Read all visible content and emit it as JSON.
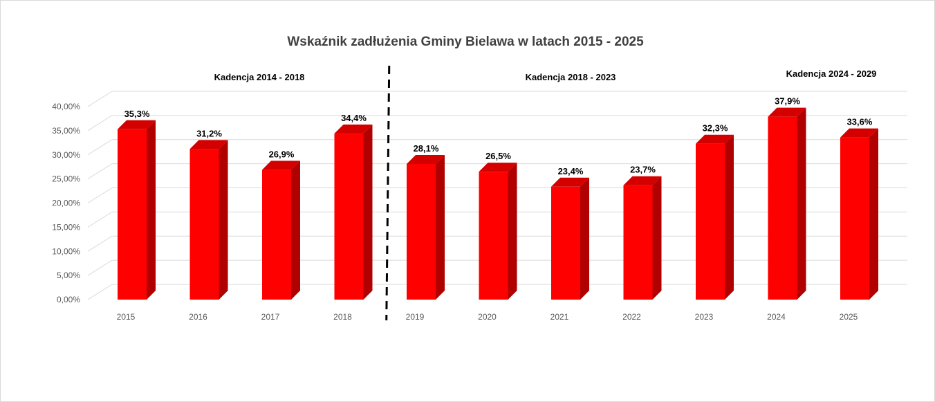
{
  "chart_data": {
    "type": "bar",
    "title": "Wskaźnik zadłużenia Gminy Bielawa w latach 2015 - 2025",
    "xlabel": "",
    "ylabel": "",
    "categories": [
      "2015",
      "2016",
      "2017",
      "2018",
      "2019",
      "2020",
      "2021",
      "2022",
      "2023",
      "2024",
      "2025"
    ],
    "values": [
      35.3,
      31.2,
      26.9,
      34.4,
      28.1,
      26.5,
      23.4,
      23.7,
      32.3,
      37.9,
      33.6
    ],
    "data_labels": [
      "35,3%",
      "31,2%",
      "26,9%",
      "34,4%",
      "28,1%",
      "26,5%",
      "23,4%",
      "23,7%",
      "32,3%",
      "37,9%",
      "33,6%"
    ],
    "ylim": [
      0,
      40
    ],
    "yticks": [
      0,
      5,
      10,
      15,
      20,
      25,
      30,
      35,
      40
    ],
    "ytick_labels": [
      "0,00%",
      "5,00%",
      "10,00%",
      "15,00%",
      "20,00%",
      "25,00%",
      "30,00%",
      "35,00%",
      "40,00%"
    ],
    "grid": true,
    "style": "3d-column",
    "bar_color": "#ff0000",
    "bar_side_color": "#b00000",
    "bar_top_color": "#d40000",
    "annotations": [
      {
        "text": "Kadencja 2014 - 2018"
      },
      {
        "text": "Kadencja 2018 - 2023"
      },
      {
        "text": "Kadencja 2024 - 2029"
      }
    ],
    "divider": {
      "after_category": "2018",
      "style": "dashed",
      "color": "#000000"
    }
  }
}
